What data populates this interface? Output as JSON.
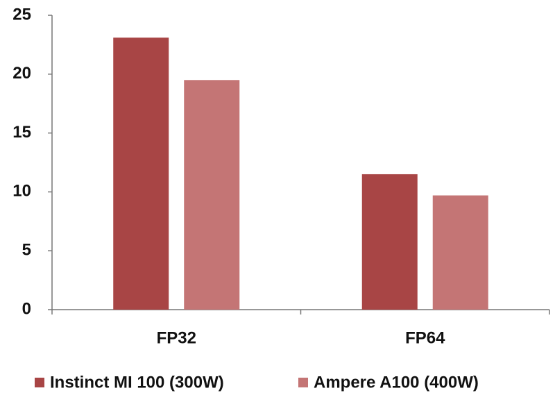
{
  "chart_data": {
    "type": "bar",
    "categories": [
      "FP32",
      "FP64"
    ],
    "series": [
      {
        "name": "Instinct MI 100 (300W)",
        "color": "#a84545",
        "values": [
          23.1,
          11.5
        ]
      },
      {
        "name": "Ampere A100 (400W)",
        "color": "#c47575",
        "values": [
          19.5,
          9.7
        ]
      }
    ],
    "ylim": [
      0,
      25
    ],
    "yticks": [
      0,
      5,
      10,
      15,
      20,
      25
    ],
    "grid": false,
    "legend": "bottom"
  }
}
